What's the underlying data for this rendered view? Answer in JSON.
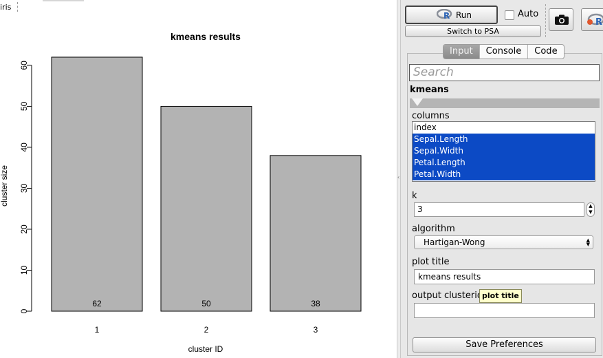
{
  "workspace": {
    "tab_label": "iris"
  },
  "chart_data": {
    "type": "bar",
    "title": "kmeans results",
    "xlabel": "cluster ID",
    "ylabel": "cluster size",
    "categories": [
      "1",
      "2",
      "3"
    ],
    "values": [
      62,
      50,
      38
    ],
    "data_labels": [
      "62",
      "50",
      "38"
    ],
    "ylim": [
      0,
      62
    ],
    "yticks": [
      0,
      10,
      20,
      30,
      40,
      50,
      60
    ],
    "bar_color": "#b3b3b3",
    "grid": false,
    "legend": "none"
  },
  "toolbar": {
    "run_label": "Run",
    "auto_label": "Auto",
    "auto_checked": false,
    "switch_label": "Switch to PSA"
  },
  "tabs": [
    {
      "label": "Input",
      "active": true
    },
    {
      "label": "Console",
      "active": false
    },
    {
      "label": "Code",
      "active": false
    }
  ],
  "search": {
    "placeholder": "Search"
  },
  "kmeans": {
    "title": "kmeans",
    "columns_label": "columns",
    "columns": [
      {
        "name": "index",
        "selected": false
      },
      {
        "name": "Sepal.Length",
        "selected": true
      },
      {
        "name": "Sepal.Width",
        "selected": true
      },
      {
        "name": "Petal.Length",
        "selected": true
      },
      {
        "name": "Petal.Width",
        "selected": true
      }
    ],
    "k_label": "k",
    "k_value": "3",
    "algorithm_label": "algorithm",
    "algorithm_value": "Hartigan-Wong",
    "plot_title_label": "plot title",
    "plot_title_value": "kmeans results",
    "output_label": "output clusterid",
    "output_value": ""
  },
  "tooltip": {
    "text": "plot title"
  },
  "save_label": "Save Preferences",
  "colors": {
    "selection": "#0c4ac5",
    "tooltip_bg": "#ffffcc"
  }
}
